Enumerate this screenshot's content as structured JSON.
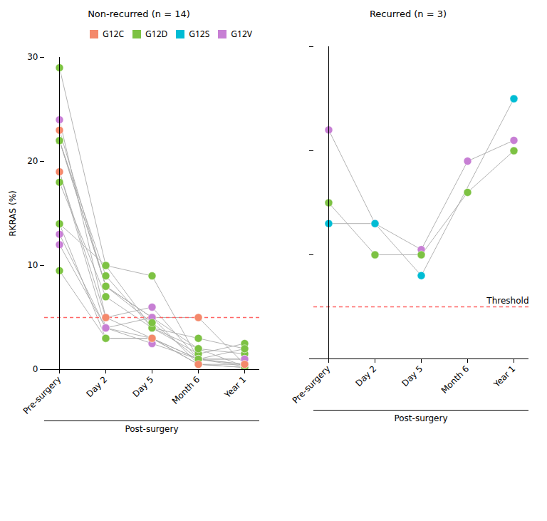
{
  "chart_data": [
    {
      "type": "line",
      "marker": "circle",
      "title": "Non-recurred (n = 14)",
      "ylabel": "RKRAS (%)",
      "x": [
        "Pre-surgery",
        "Day 2",
        "Day 5",
        "Month 6",
        "Year 1"
      ],
      "series": [
        {
          "name": "G12D",
          "color": "#7DC243",
          "values": [
            29,
            10,
            9,
            1,
            0.3
          ]
        },
        {
          "name": "G12D",
          "color": "#7DC243",
          "values": [
            22,
            8,
            5,
            2,
            1.5
          ]
        },
        {
          "name": "G12C",
          "color": "#F4896B",
          "values": [
            23,
            8,
            5,
            5,
            0.5
          ]
        },
        {
          "name": "G12D",
          "color": "#7DC243",
          "values": [
            22,
            9,
            4,
            3,
            2
          ]
        },
        {
          "name": "G12V",
          "color": "#C77FD4",
          "values": [
            24,
            5,
            6,
            1,
            1
          ]
        },
        {
          "name": "G12V",
          "color": "#C77FD4",
          "values": [
            19,
            4,
            3,
            1,
            0.5
          ]
        },
        {
          "name": "G12D",
          "color": "#7DC243",
          "values": [
            18,
            7,
            4,
            1.5,
            2.5
          ]
        },
        {
          "name": "G12D",
          "color": "#7DC243",
          "values": [
            14,
            3,
            3,
            1,
            2
          ]
        },
        {
          "name": "G12V",
          "color": "#C77FD4",
          "values": [
            13,
            4,
            2.5,
            1,
            1
          ]
        },
        {
          "name": "G12D",
          "color": "#7DC243",
          "values": [
            14,
            10,
            4,
            2,
            0.3
          ]
        },
        {
          "name": "G12V",
          "color": "#C77FD4",
          "values": [
            12,
            4,
            5,
            0.5,
            0.2
          ]
        },
        {
          "name": "G12D",
          "color": "#7DC243",
          "values": [
            9.5,
            3,
            3,
            0.5,
            0.2
          ]
        },
        {
          "name": "G12D",
          "color": "#7DC243",
          "values": [
            22,
            8,
            4.5,
            1,
            0.5
          ]
        },
        {
          "name": "G12C",
          "color": "#F4896B",
          "values": [
            19,
            5,
            3,
            0.5,
            0.5
          ]
        }
      ],
      "threshold": 5,
      "annotation": "Post-surgery",
      "ylim": [
        0,
        30
      ],
      "yticks": [
        0,
        10,
        20,
        30
      ],
      "grid": false,
      "legend": "upper right"
    },
    {
      "type": "line",
      "marker": "circle",
      "title": "Recurred (n = 3)",
      "x": [
        "Pre-surgery",
        "Day 2",
        "Day 5",
        "Month 6",
        "Year 1"
      ],
      "series": [
        {
          "name": "G12V",
          "color": "#C77FD4",
          "values": [
            22,
            13,
            10.5,
            19,
            21
          ]
        },
        {
          "name": "G12D",
          "color": "#7DC243",
          "values": [
            15,
            10,
            10,
            16,
            20
          ]
        },
        {
          "name": "G12S",
          "color": "#00BCD4",
          "values": [
            13,
            13,
            8,
            null,
            25
          ]
        }
      ],
      "threshold": 5,
      "threshold_label": "Threshold",
      "annotation": "Post-surgery",
      "ylim": [
        0,
        30
      ],
      "yticks": [
        0,
        10,
        20,
        30
      ],
      "grid": false,
      "tick_labels": "x"
    }
  ]
}
